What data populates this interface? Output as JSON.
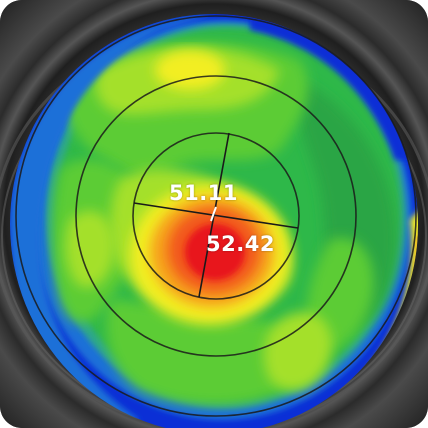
{
  "keratometry": {
    "flat_k": "51.11",
    "steep_k": "52.42"
  },
  "colors": {
    "background_dark": "#2a2a2a",
    "deep_blue": "#0b2fd6",
    "blue": "#1f6fd8",
    "teal": "#2fa88a",
    "green": "#2fb84a",
    "light_green": "#5ccc36",
    "yellow_green": "#a4e02a",
    "yellow": "#f2ee22",
    "orange": "#f6a21e",
    "red_orange": "#f2561a",
    "red": "#e8141a",
    "ring_line": "#1a1a1a"
  }
}
